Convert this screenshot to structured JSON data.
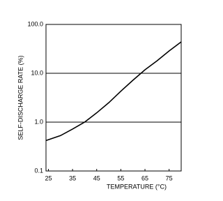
{
  "chart_data": {
    "type": "line",
    "x_label": "TEMPERATURE (°C)",
    "y_label": "SELF-DISCHARGE RATE (%)",
    "x": [
      24,
      30,
      35,
      40,
      45,
      50,
      55,
      60,
      65,
      70,
      75,
      80
    ],
    "series": [
      {
        "color": "#000000",
        "values": [
          0.42,
          0.53,
          0.72,
          1.0,
          1.55,
          2.5,
          4.3,
          7.2,
          11.8,
          18,
          28.7,
          44
        ]
      }
    ],
    "xlim": [
      24,
      80
    ],
    "xticks": [
      25,
      35,
      45,
      55,
      65,
      75
    ],
    "ylim": [
      0.1,
      100
    ],
    "log_y": true,
    "grid": true,
    "yticks": [
      0.1,
      {
        "value": 1,
        "label": "1.0"
      },
      {
        "value": 10,
        "label": "10.0"
      },
      {
        "value": 100,
        "label": "100.0"
      }
    ]
  }
}
